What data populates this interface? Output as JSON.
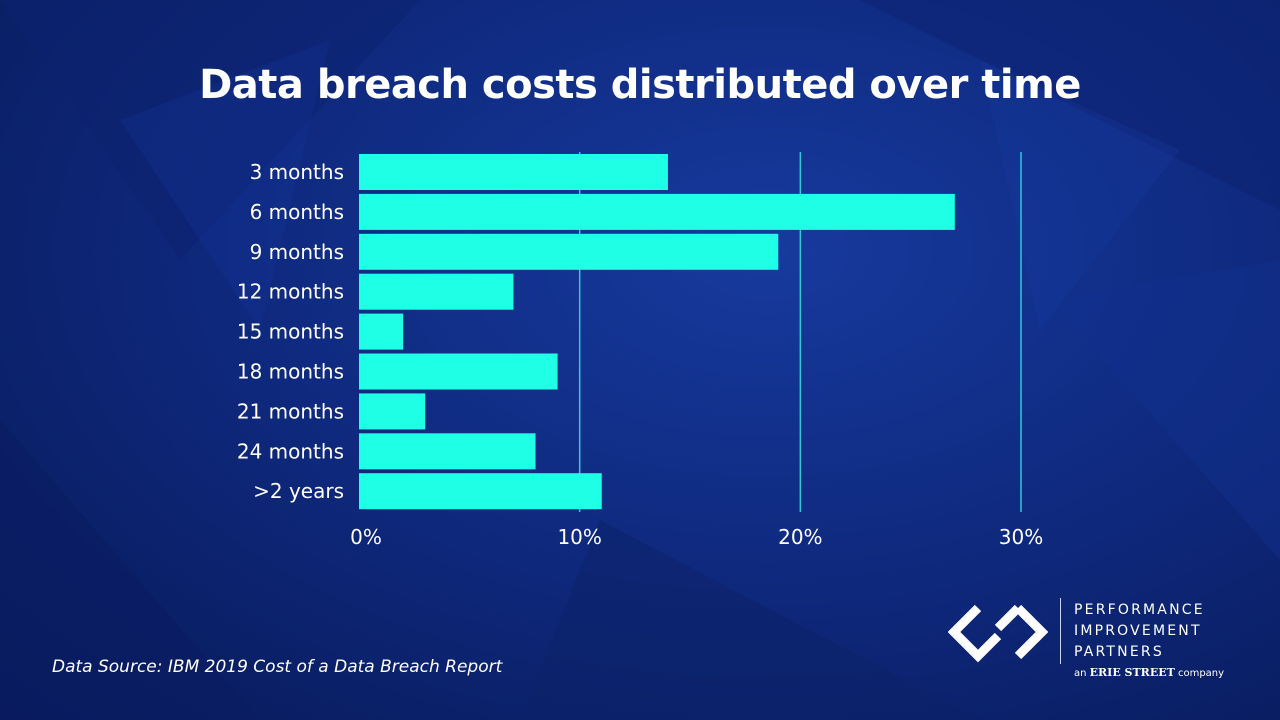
{
  "chart_data": {
    "type": "bar",
    "orientation": "horizontal",
    "title": "Data breach costs distributed over time",
    "categories": [
      "3 months",
      "6 months",
      "9 months",
      "12 months",
      "15 months",
      "18 months",
      "21 months",
      "24 months",
      ">2 years"
    ],
    "values": [
      14,
      27,
      19,
      7,
      2,
      9,
      3,
      8,
      11
    ],
    "xticks": [
      "0%",
      "10%",
      "20%",
      "30%"
    ],
    "xlim": [
      0,
      30
    ],
    "grid": "vertical",
    "bar_color": "#1effe6",
    "xlabel": "",
    "ylabel": ""
  },
  "source": "Data Source: IBM 2019 Cost of a Data Breach Report",
  "logo": {
    "lines": [
      "PERFORMANCE",
      "IMPROVEMENT",
      "PARTNERS"
    ],
    "sub_prefix": "an",
    "sub_brand": "ERIE STREET",
    "sub_suffix": "company"
  },
  "colors": {
    "background": "#0f2a80",
    "bar": "#1effe6",
    "grid": "#35c6d9",
    "text": "#ffffff"
  }
}
